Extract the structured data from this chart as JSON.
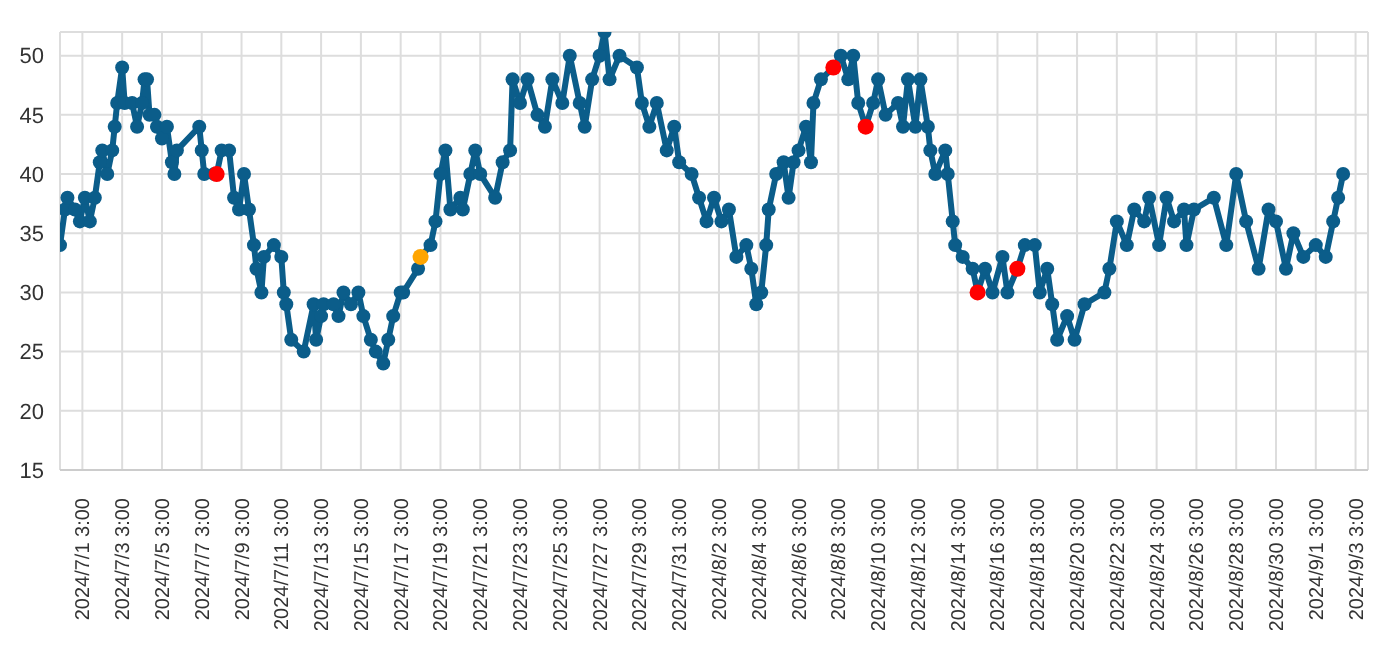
{
  "chart_data": {
    "type": "line",
    "xlim": [
      "2024-06-30T00:00",
      "2024-09-03T18:00"
    ],
    "ylim": [
      15,
      52
    ],
    "yticks": [
      15,
      20,
      25,
      30,
      35,
      40,
      45,
      50
    ],
    "xticks": [
      {
        "value": "2024-07-01T03:00",
        "label": "2024/7/1 3:00"
      },
      {
        "value": "2024-07-03T03:00",
        "label": "2024/7/3 3:00"
      },
      {
        "value": "2024-07-05T03:00",
        "label": "2024/7/5 3:00"
      },
      {
        "value": "2024-07-07T03:00",
        "label": "2024/7/7 3:00"
      },
      {
        "value": "2024-07-09T03:00",
        "label": "2024/7/9 3:00"
      },
      {
        "value": "2024-07-11T03:00",
        "label": "2024/7/11 3:00"
      },
      {
        "value": "2024-07-13T03:00",
        "label": "2024/7/13 3:00"
      },
      {
        "value": "2024-07-15T03:00",
        "label": "2024/7/15 3:00"
      },
      {
        "value": "2024-07-17T03:00",
        "label": "2024/7/17 3:00"
      },
      {
        "value": "2024-07-19T03:00",
        "label": "2024/7/19 3:00"
      },
      {
        "value": "2024-07-21T03:00",
        "label": "2024/7/21 3:00"
      },
      {
        "value": "2024-07-23T03:00",
        "label": "2024/7/23 3:00"
      },
      {
        "value": "2024-07-25T03:00",
        "label": "2024/7/25 3:00"
      },
      {
        "value": "2024-07-27T03:00",
        "label": "2024/7/27 3:00"
      },
      {
        "value": "2024-07-29T03:00",
        "label": "2024/7/29 3:00"
      },
      {
        "value": "2024-07-31T03:00",
        "label": "2024/7/31 3:00"
      },
      {
        "value": "2024-08-02T03:00",
        "label": "2024/8/2 3:00"
      },
      {
        "value": "2024-08-04T03:00",
        "label": "2024/8/4 3:00"
      },
      {
        "value": "2024-08-06T03:00",
        "label": "2024/8/6 3:00"
      },
      {
        "value": "2024-08-08T03:00",
        "label": "2024/8/8 3:00"
      },
      {
        "value": "2024-08-10T03:00",
        "label": "2024/8/10 3:00"
      },
      {
        "value": "2024-08-12T03:00",
        "label": "2024/8/12 3:00"
      },
      {
        "value": "2024-08-14T03:00",
        "label": "2024/8/14 3:00"
      },
      {
        "value": "2024-08-16T03:00",
        "label": "2024/8/16 3:00"
      },
      {
        "value": "2024-08-18T03:00",
        "label": "2024/8/18 3:00"
      },
      {
        "value": "2024-08-20T03:00",
        "label": "2024/8/20 3:00"
      },
      {
        "value": "2024-08-22T03:00",
        "label": "2024/8/22 3:00"
      },
      {
        "value": "2024-08-24T03:00",
        "label": "2024/8/24 3:00"
      },
      {
        "value": "2024-08-26T03:00",
        "label": "2024/8/26 3:00"
      },
      {
        "value": "2024-08-28T03:00",
        "label": "2024/8/28 3:00"
      },
      {
        "value": "2024-08-30T03:00",
        "label": "2024/8/30 3:00"
      },
      {
        "value": "2024-09-01T03:00",
        "label": "2024/9/1 3:00"
      },
      {
        "value": "2024-09-03T03:00",
        "label": "2024/9/3 3:00"
      }
    ],
    "grid": true,
    "legend": false,
    "marker": "circle",
    "line_style": "solid",
    "series": [
      {
        "color": "#0b5d8a",
        "x": [
          "2024-06-30T00:00",
          "2024-06-30T06:00",
          "2024-06-30T09:00",
          "2024-06-30T18:00",
          "2024-07-01T00:00",
          "2024-07-01T06:00",
          "2024-07-01T12:00",
          "2024-07-01T18:00",
          "2024-07-02T00:00",
          "2024-07-02T03:00",
          "2024-07-02T09:00",
          "2024-07-02T15:00",
          "2024-07-02T18:00",
          "2024-07-02T21:00",
          "2024-07-03T03:00",
          "2024-07-03T06:00",
          "2024-07-03T15:00",
          "2024-07-03T21:00",
          "2024-07-04T03:00",
          "2024-07-04T06:00",
          "2024-07-04T09:00",
          "2024-07-04T12:00",
          "2024-07-04T18:00",
          "2024-07-04T21:00",
          "2024-07-05T03:00",
          "2024-07-05T09:00",
          "2024-07-05T15:00",
          "2024-07-05T18:00",
          "2024-07-05T21:00",
          "2024-07-07T00:00",
          "2024-07-07T03:00",
          "2024-07-07T06:00",
          "2024-07-07T18:00",
          "2024-07-07T21:00",
          "2024-07-08T03:00",
          "2024-07-08T12:00",
          "2024-07-08T18:00",
          "2024-07-09T00:00",
          "2024-07-09T06:00",
          "2024-07-09T12:00",
          "2024-07-09T18:00",
          "2024-07-09T21:00",
          "2024-07-10T03:00",
          "2024-07-10T06:00",
          "2024-07-10T18:00",
          "2024-07-11T03:00",
          "2024-07-11T06:00",
          "2024-07-11T09:00",
          "2024-07-11T15:00",
          "2024-07-12T06:00",
          "2024-07-12T18:00",
          "2024-07-12T21:00",
          "2024-07-13T03:00",
          "2024-07-13T06:00",
          "2024-07-13T18:00",
          "2024-07-14T00:00",
          "2024-07-14T06:00",
          "2024-07-14T15:00",
          "2024-07-15T00:00",
          "2024-07-15T06:00",
          "2024-07-15T15:00",
          "2024-07-15T21:00",
          "2024-07-16T06:00",
          "2024-07-16T12:00",
          "2024-07-16T18:00",
          "2024-07-17T03:00",
          "2024-07-17T06:00",
          "2024-07-18T00:00",
          "2024-07-18T03:00",
          "2024-07-18T15:00",
          "2024-07-18T21:00",
          "2024-07-19T03:00",
          "2024-07-19T09:00",
          "2024-07-19T15:00",
          "2024-07-20T03:00",
          "2024-07-20T06:00",
          "2024-07-20T15:00",
          "2024-07-20T21:00",
          "2024-07-21T03:00",
          "2024-07-21T21:00",
          "2024-07-22T06:00",
          "2024-07-22T15:00",
          "2024-07-22T18:00",
          "2024-07-23T03:00",
          "2024-07-23T12:00",
          "2024-07-24T00:00",
          "2024-07-24T09:00",
          "2024-07-24T18:00",
          "2024-07-25T06:00",
          "2024-07-25T15:00",
          "2024-07-26T03:00",
          "2024-07-26T09:00",
          "2024-07-26T18:00",
          "2024-07-27T03:00",
          "2024-07-27T09:00",
          "2024-07-27T15:00",
          "2024-07-28T03:00",
          "2024-07-29T00:00",
          "2024-07-29T06:00",
          "2024-07-29T15:00",
          "2024-07-30T00:00",
          "2024-07-30T12:00",
          "2024-07-30T21:00",
          "2024-07-31T03:00",
          "2024-07-31T18:00",
          "2024-08-01T03:00",
          "2024-08-01T12:00",
          "2024-08-01T21:00",
          "2024-08-02T06:00",
          "2024-08-02T15:00",
          "2024-08-03T00:00",
          "2024-08-03T12:00",
          "2024-08-03T18:00",
          "2024-08-04T00:00",
          "2024-08-04T06:00",
          "2024-08-04T12:00",
          "2024-08-04T15:00",
          "2024-08-05T00:00",
          "2024-08-05T09:00",
          "2024-08-05T15:00",
          "2024-08-05T21:00",
          "2024-08-06T03:00",
          "2024-08-06T12:00",
          "2024-08-06T18:00",
          "2024-08-06T21:00",
          "2024-08-07T06:00",
          "2024-08-07T21:00",
          "2024-08-08T06:00",
          "2024-08-08T15:00",
          "2024-08-08T21:00",
          "2024-08-09T03:00",
          "2024-08-09T12:00",
          "2024-08-09T21:00",
          "2024-08-10T03:00",
          "2024-08-10T12:00",
          "2024-08-11T03:00",
          "2024-08-11T09:00",
          "2024-08-11T15:00",
          "2024-08-12T00:00",
          "2024-08-12T06:00",
          "2024-08-12T15:00",
          "2024-08-12T18:00",
          "2024-08-13T00:00",
          "2024-08-13T12:00",
          "2024-08-13T15:00",
          "2024-08-13T21:00",
          "2024-08-14T00:00",
          "2024-08-14T09:00",
          "2024-08-14T21:00",
          "2024-08-15T03:00",
          "2024-08-15T12:00",
          "2024-08-15T21:00",
          "2024-08-16T09:00",
          "2024-08-16T15:00",
          "2024-08-17T03:00",
          "2024-08-17T12:00",
          "2024-08-18T00:00",
          "2024-08-18T06:00",
          "2024-08-18T15:00",
          "2024-08-18T21:00",
          "2024-08-19T03:00",
          "2024-08-19T15:00",
          "2024-08-20T00:00",
          "2024-08-20T12:00",
          "2024-08-21T12:00",
          "2024-08-21T18:00",
          "2024-08-22T03:00",
          "2024-08-22T15:00",
          "2024-08-23T00:00",
          "2024-08-23T12:00",
          "2024-08-23T18:00",
          "2024-08-24T06:00",
          "2024-08-24T15:00",
          "2024-08-25T00:00",
          "2024-08-25T12:00",
          "2024-08-25T15:00",
          "2024-08-26T00:00",
          "2024-08-27T00:00",
          "2024-08-27T15:00",
          "2024-08-28T03:00",
          "2024-08-28T15:00",
          "2024-08-29T06:00",
          "2024-08-29T18:00",
          "2024-08-30T03:00",
          "2024-08-30T15:00",
          "2024-08-31T00:00",
          "2024-08-31T12:00",
          "2024-09-01T03:00",
          "2024-09-01T15:00",
          "2024-09-02T00:00",
          "2024-09-02T06:00",
          "2024-09-02T12:00"
        ],
        "values": [
          34,
          37,
          38,
          37,
          36,
          38,
          36,
          38,
          41,
          42,
          40,
          42,
          44,
          46,
          49,
          46,
          46,
          44,
          46,
          48,
          48,
          45,
          45,
          44,
          43,
          44,
          41,
          40,
          42,
          44,
          42,
          40,
          40,
          40,
          42,
          42,
          38,
          37,
          40,
          37,
          34,
          32,
          30,
          33,
          34,
          33,
          30,
          29,
          26,
          25,
          29,
          26,
          28,
          29,
          29,
          28,
          30,
          29,
          30,
          28,
          26,
          25,
          24,
          26,
          28,
          30,
          30,
          32,
          33,
          34,
          36,
          40,
          42,
          37,
          38,
          37,
          40,
          42,
          40,
          38,
          41,
          42,
          48,
          46,
          48,
          45,
          44,
          48,
          46,
          50,
          46,
          44,
          48,
          50,
          52,
          48,
          50,
          49,
          46,
          44,
          46,
          42,
          44,
          41,
          40,
          38,
          36,
          38,
          36,
          37,
          33,
          34,
          32,
          29,
          30,
          34,
          37,
          40,
          41,
          38,
          41,
          42,
          44,
          41,
          46,
          48,
          49,
          50,
          48,
          50,
          46,
          44,
          46,
          48,
          45,
          46,
          44,
          48,
          44,
          48,
          44,
          42,
          40,
          42,
          40,
          36,
          34,
          33,
          32,
          30,
          32,
          30,
          33,
          30,
          32,
          34,
          34,
          30,
          32,
          29,
          26,
          28,
          26,
          29,
          30,
          32,
          36,
          34,
          37,
          36,
          38,
          34,
          38,
          36,
          37,
          34,
          37,
          38,
          34,
          40,
          36,
          32,
          37,
          36,
          32,
          35,
          33,
          34,
          33,
          36,
          38,
          40
        ]
      },
      {
        "type": "scatter",
        "color": "#ff0000",
        "x": [
          "2024-07-07T21:00",
          "2024-08-07T21:00",
          "2024-08-09T12:00",
          "2024-08-15T03:00",
          "2024-08-17T03:00"
        ],
        "values": [
          40,
          49,
          44,
          30,
          32
        ]
      },
      {
        "type": "scatter",
        "color": "#ffa500",
        "x": [
          "2024-07-18T03:00"
        ],
        "values": [
          33
        ]
      }
    ]
  }
}
